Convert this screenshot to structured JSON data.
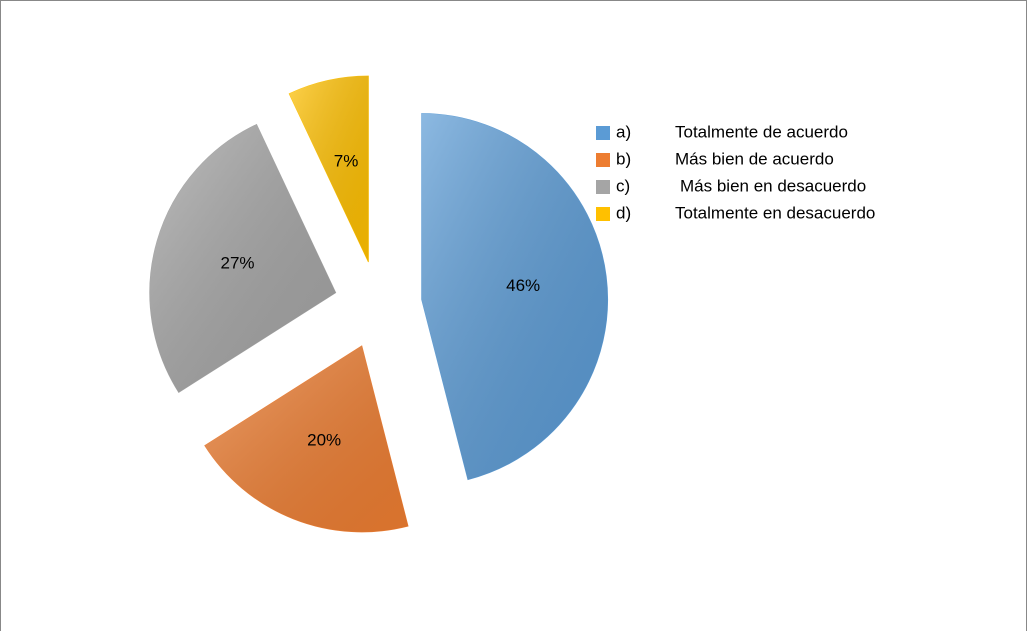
{
  "chart_data": {
    "type": "pie",
    "category_letters": [
      "a)",
      "b)",
      "c)",
      "d)"
    ],
    "categories": [
      "Totalmente de acuerdo",
      "Más bien de acuerdo",
      "Más bien en desacuerdo",
      "Totalmente en desacuerdo"
    ],
    "values": [
      46,
      20,
      27,
      7
    ],
    "value_labels": [
      "46%",
      "20%",
      "27%",
      "7%"
    ],
    "colors": [
      "#5b9bd5",
      "#ed7d31",
      "#a5a5a5",
      "#ffc000"
    ],
    "exploded": true,
    "legend": "right"
  }
}
